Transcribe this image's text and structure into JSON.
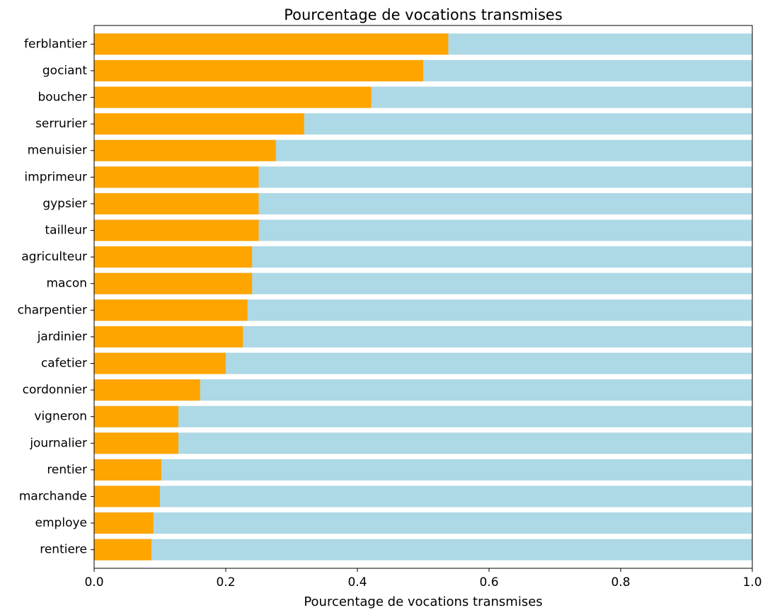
{
  "chart_data": {
    "type": "bar",
    "orientation": "horizontal",
    "stacked": true,
    "title": "Pourcentage de vocations transmises",
    "xlabel": "Pourcentage de vocations transmises",
    "ylabel": "",
    "xlim": [
      0,
      1.0
    ],
    "xticks": [
      "0.0",
      "0.2",
      "0.4",
      "0.6",
      "0.8",
      "1.0"
    ],
    "grid": false,
    "categories": [
      "ferblantier",
      "gociant",
      "boucher",
      "serrurier",
      "menuisier",
      "imprimeur",
      "gypsier",
      "tailleur",
      "agriculteur",
      "macon",
      "charpentier",
      "jardinier",
      "cafetier",
      "cordonnier",
      "vigneron",
      "journalier",
      "rentier",
      "marchande",
      "employe",
      "rentiere"
    ],
    "values": [
      0.538,
      0.5,
      0.421,
      0.319,
      0.276,
      0.25,
      0.25,
      0.25,
      0.24,
      0.24,
      0.233,
      0.226,
      0.2,
      0.161,
      0.128,
      0.128,
      0.102,
      0.1,
      0.09,
      0.087
    ],
    "colors": {
      "transmitted": "#ffa500",
      "remainder": "#add8e6"
    }
  }
}
